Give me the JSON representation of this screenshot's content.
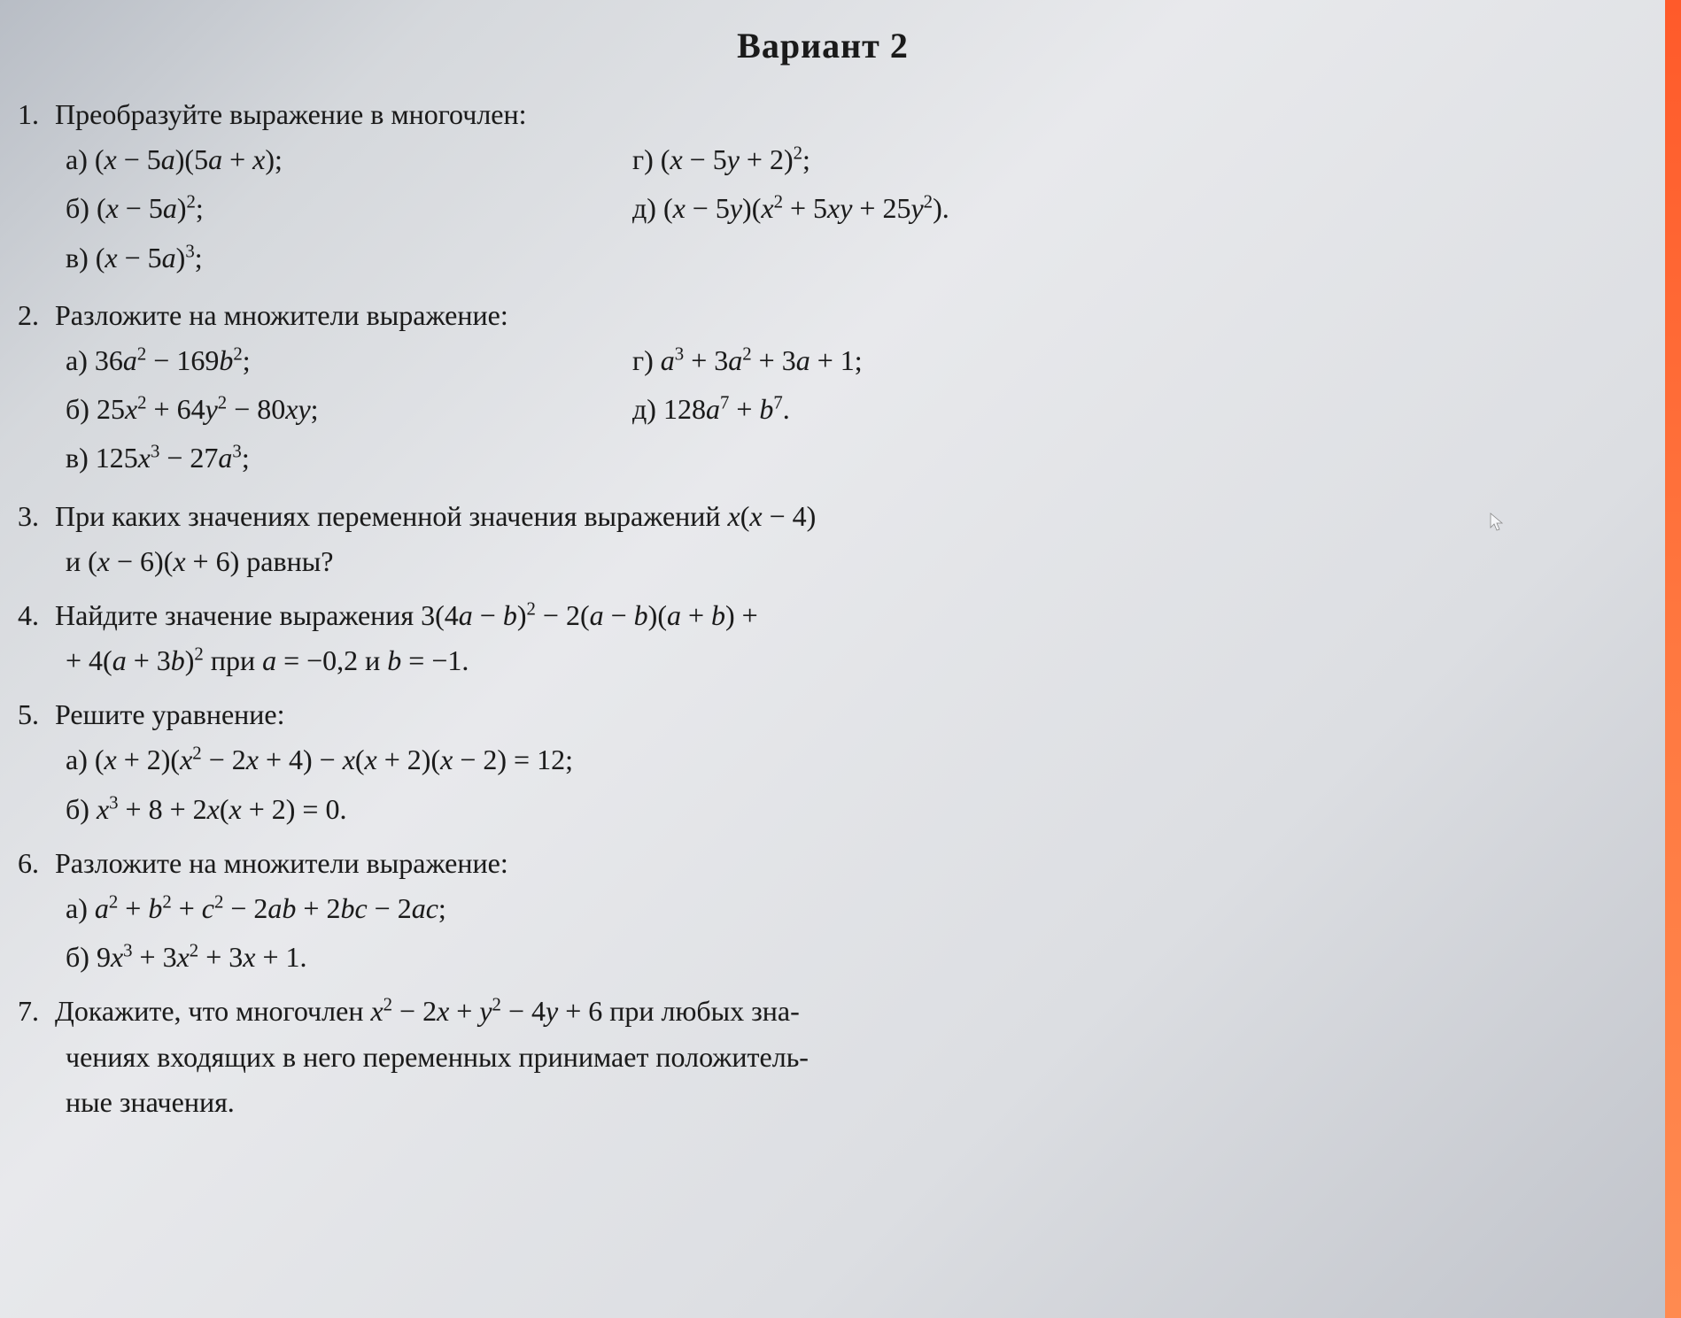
{
  "title": "Вариант 2",
  "background_gradient": [
    "#b8bdc5",
    "#d5d8dc",
    "#e8e9ec",
    "#dcdee2",
    "#c0c3ca"
  ],
  "edge_color": "#ff6a35",
  "text_color": "#1a1a1a",
  "font_family": "Georgia serif",
  "title_fontsize": 40,
  "body_fontsize": 32,
  "problems": [
    {
      "num": "1.",
      "text": "Преобразуйте выражение в многочлен:",
      "left_items": [
        {
          "label": "а)",
          "expr_html": "(<span class='italic'>x</span> − 5<span class='italic'>a</span>)(5<span class='italic'>a</span> + <span class='italic'>x</span>);"
        },
        {
          "label": "б)",
          "expr_html": "(<span class='italic'>x</span> − 5<span class='italic'>a</span>)<sup>2</sup>;"
        },
        {
          "label": "в)",
          "expr_html": "(<span class='italic'>x</span> − 5<span class='italic'>a</span>)<sup>3</sup>;"
        }
      ],
      "right_items": [
        {
          "label": "г)",
          "expr_html": "(<span class='italic'>x</span> − 5<span class='italic'>y</span> + 2)<sup>2</sup>;"
        },
        {
          "label": "д)",
          "expr_html": "(<span class='italic'>x</span> − 5<span class='italic'>y</span>)(<span class='italic'>x</span><sup>2</sup> + 5<span class='italic'>xy</span> + 25<span class='italic'>y</span><sup>2</sup>)."
        }
      ]
    },
    {
      "num": "2.",
      "text": "Разложите на множители выражение:",
      "left_items": [
        {
          "label": "а)",
          "expr_html": "36<span class='italic'>a</span><sup>2</sup> − 169<span class='italic'>b</span><sup>2</sup>;"
        },
        {
          "label": "б)",
          "expr_html": "25<span class='italic'>x</span><sup>2</sup> + 64<span class='italic'>y</span><sup>2</sup> − 80<span class='italic'>xy</span>;"
        },
        {
          "label": "в)",
          "expr_html": "125<span class='italic'>x</span><sup>3</sup> − 27<span class='italic'>a</span><sup>3</sup>;"
        }
      ],
      "right_items": [
        {
          "label": "г)",
          "expr_html": "<span class='italic'>a</span><sup>3</sup> + 3<span class='italic'>a</span><sup>2</sup> + 3<span class='italic'>a</span> + 1;"
        },
        {
          "label": "д)",
          "expr_html": "128<span class='italic'>a</span><sup>7</sup> + <span class='italic'>b</span><sup>7</sup>."
        }
      ]
    },
    {
      "num": "3.",
      "text_html": "При каких значениях переменной значения выражений <span class='italic'>x</span>(<span class='italic'>x</span> − 4)",
      "continuation_html": "и (<span class='italic'>x</span> − 6)(<span class='italic'>x</span> + 6) равны?"
    },
    {
      "num": "4.",
      "text_html": "Найдите значение выражения 3(4<span class='italic'>a</span> − <span class='italic'>b</span>)<sup>2</sup> − 2(<span class='italic'>a</span> − <span class='italic'>b</span>)(<span class='italic'>a</span> + <span class='italic'>b</span>) +",
      "continuation_html": "+ 4(<span class='italic'>a</span> + 3<span class='italic'>b</span>)<sup>2</sup> при <span class='italic'>a</span> = −0,2 и <span class='italic'>b</span> = −1."
    },
    {
      "num": "5.",
      "text": "Решите уравнение:",
      "full_items": [
        {
          "label": "а)",
          "expr_html": "(<span class='italic'>x</span> + 2)(<span class='italic'>x</span><sup>2</sup> − 2<span class='italic'>x</span> + 4) − <span class='italic'>x</span>(<span class='italic'>x</span> + 2)(<span class='italic'>x</span> − 2) = 12;"
        },
        {
          "label": "б)",
          "expr_html": "<span class='italic'>x</span><sup>3</sup> + 8 + 2<span class='italic'>x</span>(<span class='italic'>x</span> + 2) = 0."
        }
      ]
    },
    {
      "num": "6.",
      "text": "Разложите на множители выражение:",
      "full_items": [
        {
          "label": "а)",
          "expr_html": "<span class='italic'>a</span><sup>2</sup> + <span class='italic'>b</span><sup>2</sup> + <span class='italic'>c</span><sup>2</sup> − 2<span class='italic'>ab</span> + 2<span class='italic'>bc</span> − 2<span class='italic'>ac</span>;"
        },
        {
          "label": "б)",
          "expr_html": "9<span class='italic'>x</span><sup>3</sup> + 3<span class='italic'>x</span><sup>2</sup> + 3<span class='italic'>x</span> + 1."
        }
      ]
    },
    {
      "num": "7.",
      "text_html": "Докажите, что многочлен <span class='italic'>x</span><sup>2</sup> − 2<span class='italic'>x</span> + <span class='italic'>y</span><sup>2</sup> − 4<span class='italic'>y</span> + 6 при любых зна-",
      "continuation_html": "чениях входящих в него переменных принимает положитель-",
      "continuation2_html": "ные значения."
    }
  ]
}
